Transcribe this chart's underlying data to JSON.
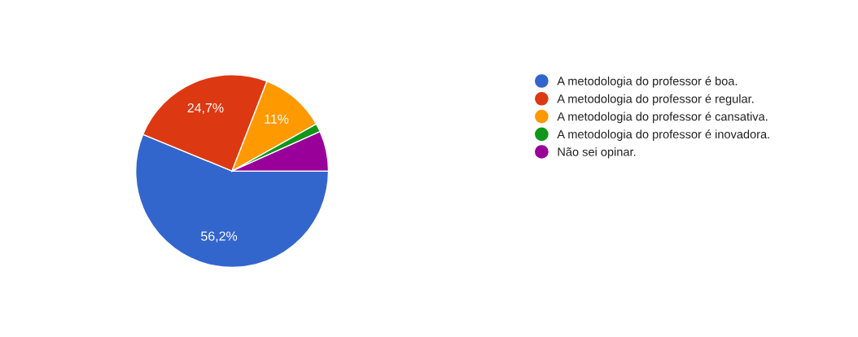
{
  "chart_data": {
    "type": "pie",
    "categories": [
      "A metodologia do professor é boa.",
      "A metodologia do professor é regular.",
      "A metodologia do professor é cansativa.",
      "A metodologia do professor é inovadora.",
      "Não sei opinar."
    ],
    "values": [
      56.2,
      24.7,
      11,
      1.4,
      6.7
    ],
    "colors": [
      "#3366cc",
      "#dc3912",
      "#ff9900",
      "#109618",
      "#990099"
    ],
    "value_labels": [
      "56,2%",
      "24,7%",
      "11%",
      null,
      null
    ],
    "legend": "right"
  }
}
